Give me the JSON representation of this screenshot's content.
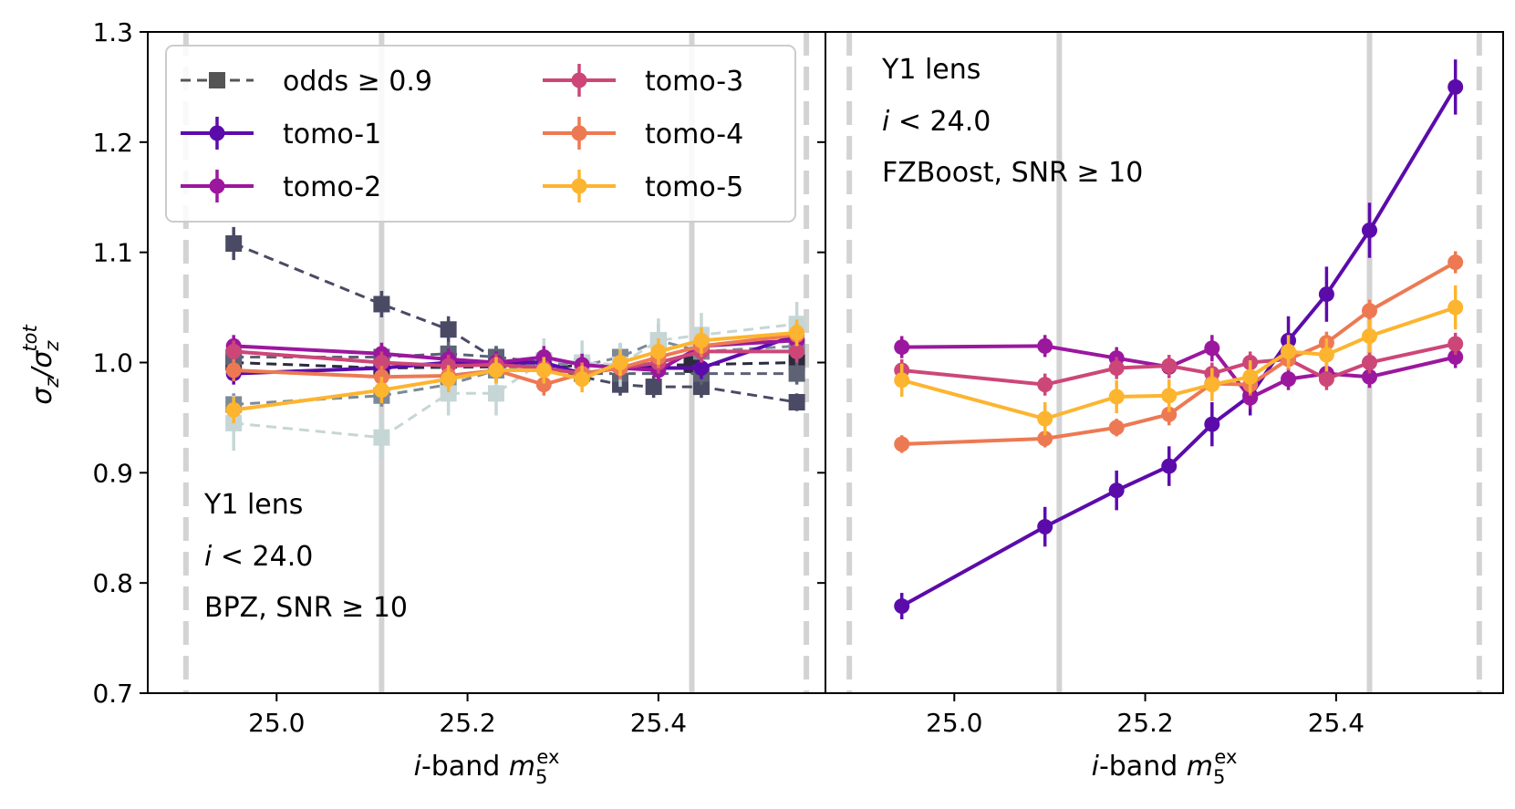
{
  "chart_data": {
    "type": "line",
    "ylabel_parts": {
      "main": "σ",
      "sub": "z",
      "slash": "/σ",
      "sub2": "z",
      "sup2": "tot"
    },
    "ylim": [
      0.7,
      1.3
    ],
    "yticks": [
      "0.7",
      "0.8",
      "0.9",
      "1.0",
      "1.1",
      "1.2",
      "1.3"
    ],
    "xlim": [
      24.865,
      25.575
    ],
    "xticks": [
      "25.0",
      "25.2",
      "25.4"
    ],
    "xlabel_parts": {
      "italic_i": "i",
      "band": "-band ",
      "m": "m",
      "sub": "5",
      "sup": "ex"
    },
    "legend": {
      "placement": "top-left of left panel",
      "entries": [
        {
          "label": "odds ≥ 0.9",
          "color": "#555555",
          "style": "dashed-square"
        },
        {
          "label": "tomo-1",
          "color": "#5c0bab",
          "style": "solid-circle"
        },
        {
          "label": "tomo-2",
          "color": "#9b179e",
          "style": "solid-circle"
        },
        {
          "label": "tomo-3",
          "color": "#cc4778",
          "style": "solid-circle"
        },
        {
          "label": "tomo-4",
          "color": "#ed7953",
          "style": "solid-circle"
        },
        {
          "label": "tomo-5",
          "color": "#fdb42f",
          "style": "solid-circle"
        }
      ]
    },
    "panels": [
      {
        "name": "BPZ",
        "annotation": [
          "Y1 lens",
          "i < 24.0",
          "BPZ, SNR ≥ 10"
        ],
        "annotation_placement": "bottom-left",
        "vlines_solid": [
          25.11,
          25.435
        ],
        "vlines_dashed": [
          24.905,
          25.555
        ],
        "series": [
          {
            "name": "odds ≥ 0.9 tomo-1",
            "style": "dashed-square",
            "color": "#2b2b3d",
            "x": [
              24.955,
              25.11,
              25.435,
              25.545
            ],
            "y": [
              1.0,
              0.995,
              0.998,
              1.0
            ],
            "err": [
              0.008,
              0.008,
              0.008,
              0.008
            ]
          },
          {
            "name": "odds ≥ 0.9 tomo-2",
            "style": "dashed-square",
            "color": "#4a4a64",
            "x": [
              24.955,
              25.11,
              25.18,
              25.23,
              25.36,
              25.395,
              25.445,
              25.545
            ],
            "y": [
              1.108,
              1.053,
              1.03,
              1.003,
              0.98,
              0.978,
              0.978,
              0.964
            ],
            "err": [
              0.015,
              0.012,
              0.012,
              0.012,
              0.01,
              0.01,
              0.01,
              0.008
            ]
          },
          {
            "name": "odds ≥ 0.9 tomo-3",
            "style": "dashed-square",
            "color": "#5d6275",
            "x": [
              24.955,
              25.11,
              25.18,
              25.23,
              25.28,
              25.32,
              25.36,
              25.445,
              25.545
            ],
            "y": [
              1.005,
              1.005,
              1.008,
              1.005,
              1.0,
              0.99,
              0.99,
              0.99,
              0.99
            ],
            "err": [
              0.01,
              0.01,
              0.01,
              0.01,
              0.01,
              0.01,
              0.01,
              0.01,
              0.01
            ]
          },
          {
            "name": "odds ≥ 0.9 tomo-4",
            "style": "dashed-square",
            "color": "#7b8a96",
            "x": [
              24.955,
              25.11,
              25.18,
              25.23,
              25.28,
              25.32,
              25.36,
              25.4,
              25.445,
              25.545
            ],
            "y": [
              0.962,
              0.97,
              0.98,
              0.993,
              1.0,
              0.997,
              1.005,
              1.02,
              1.01,
              1.015
            ],
            "err": [
              0.01,
              0.01,
              0.01,
              0.012,
              0.012,
              0.012,
              0.012,
              0.015,
              0.015,
              0.015
            ]
          },
          {
            "name": "odds ≥ 0.9 tomo-5",
            "style": "dashed-square",
            "color": "#c6d6d6",
            "x": [
              24.955,
              25.11,
              25.18,
              25.23,
              25.28,
              25.32,
              25.36,
              25.4,
              25.445,
              25.545
            ],
            "y": [
              0.945,
              0.932,
              0.972,
              0.972,
              1.002,
              1.0,
              0.998,
              1.02,
              1.025,
              1.035
            ],
            "err": [
              0.025,
              0.02,
              0.02,
              0.02,
              0.02,
              0.02,
              0.02,
              0.02,
              0.02,
              0.02
            ]
          },
          {
            "name": "tomo-1",
            "style": "solid-circle",
            "color": "#5c0bab",
            "x": [
              24.955,
              25.11,
              25.18,
              25.23,
              25.28,
              25.32,
              25.36,
              25.4,
              25.445,
              25.545
            ],
            "y": [
              0.99,
              0.995,
              1.0,
              1.0,
              1.0,
              0.99,
              0.995,
              0.995,
              0.995,
              1.025
            ],
            "err": [
              0.01,
              0.01,
              0.01,
              0.01,
              0.01,
              0.01,
              0.01,
              0.01,
              0.01,
              0.01
            ]
          },
          {
            "name": "tomo-2",
            "style": "solid-circle",
            "color": "#9b179e",
            "x": [
              24.955,
              25.11,
              25.18,
              25.23,
              25.28,
              25.32,
              25.36,
              25.4,
              25.445,
              25.545
            ],
            "y": [
              1.015,
              1.008,
              1.003,
              1.0,
              1.005,
              0.998,
              0.995,
              0.993,
              1.015,
              1.02
            ],
            "err": [
              0.01,
              0.01,
              0.01,
              0.01,
              0.01,
              0.01,
              0.01,
              0.01,
              0.01,
              0.01
            ]
          },
          {
            "name": "tomo-3",
            "style": "solid-circle",
            "color": "#cc4778",
            "x": [
              24.955,
              25.11,
              25.18,
              25.23,
              25.28,
              25.32,
              25.36,
              25.4,
              25.445,
              25.545
            ],
            "y": [
              1.01,
              1.0,
              0.997,
              0.998,
              0.995,
              0.99,
              0.995,
              1.0,
              1.01,
              1.01
            ],
            "err": [
              0.01,
              0.01,
              0.01,
              0.01,
              0.01,
              0.01,
              0.01,
              0.01,
              0.01,
              0.01
            ]
          },
          {
            "name": "tomo-4",
            "style": "solid-circle",
            "color": "#ed7953",
            "x": [
              24.955,
              25.11,
              25.18,
              25.23,
              25.28,
              25.32,
              25.36,
              25.4,
              25.445,
              25.545
            ],
            "y": [
              0.993,
              0.987,
              0.988,
              0.993,
              0.98,
              0.99,
              0.995,
              1.005,
              1.015,
              1.025
            ],
            "err": [
              0.01,
              0.01,
              0.01,
              0.01,
              0.01,
              0.01,
              0.01,
              0.01,
              0.01,
              0.01
            ]
          },
          {
            "name": "tomo-5",
            "style": "solid-circle",
            "color": "#fdb42f",
            "x": [
              24.955,
              25.11,
              25.18,
              25.23,
              25.28,
              25.32,
              25.36,
              25.4,
              25.445,
              25.545
            ],
            "y": [
              0.957,
              0.975,
              0.985,
              0.993,
              0.993,
              0.985,
              1.0,
              1.01,
              1.02,
              1.027
            ],
            "err": [
              0.012,
              0.012,
              0.012,
              0.012,
              0.012,
              0.012,
              0.012,
              0.012,
              0.012,
              0.012
            ]
          }
        ]
      },
      {
        "name": "FZBoost",
        "annotation": [
          "Y1 lens",
          "i < 24.0",
          "FZBoost, SNR ≥ 10"
        ],
        "annotation_placement": "top-left",
        "vlines_solid": [
          25.11,
          25.435
        ],
        "vlines_dashed": [
          24.89,
          25.55
        ],
        "series": [
          {
            "name": "tomo-1",
            "style": "solid-circle",
            "color": "#5c0bab",
            "x": [
              24.945,
              25.095,
              25.17,
              25.225,
              25.27,
              25.31,
              25.35,
              25.39,
              25.435,
              25.525
            ],
            "y": [
              0.779,
              0.851,
              0.884,
              0.906,
              0.944,
              0.97,
              1.02,
              1.062,
              1.12,
              1.25
            ],
            "err": [
              0.012,
              0.018,
              0.018,
              0.018,
              0.02,
              0.018,
              0.022,
              0.025,
              0.025,
              0.025
            ]
          },
          {
            "name": "tomo-2",
            "style": "solid-circle",
            "color": "#9b179e",
            "x": [
              24.945,
              25.095,
              25.17,
              25.225,
              25.27,
              25.31,
              25.35,
              25.39,
              25.435,
              25.525
            ],
            "y": [
              1.014,
              1.015,
              1.004,
              0.996,
              1.013,
              0.968,
              0.985,
              0.99,
              0.987,
              1.005
            ],
            "err": [
              0.01,
              0.01,
              0.01,
              0.01,
              0.012,
              0.01,
              0.01,
              0.01,
              0.01,
              0.01
            ]
          },
          {
            "name": "tomo-3",
            "style": "solid-circle",
            "color": "#cc4778",
            "x": [
              24.945,
              25.095,
              25.17,
              25.225,
              25.27,
              25.31,
              25.35,
              25.39,
              25.435,
              25.525
            ],
            "y": [
              0.993,
              0.98,
              0.995,
              0.997,
              0.99,
              1.0,
              1.003,
              0.985,
              1.0,
              1.017
            ],
            "err": [
              0.01,
              0.01,
              0.01,
              0.01,
              0.01,
              0.01,
              0.01,
              0.01,
              0.01,
              0.01
            ]
          },
          {
            "name": "tomo-4",
            "style": "solid-circle",
            "color": "#ed7953",
            "x": [
              24.945,
              25.095,
              25.17,
              25.225,
              25.27,
              25.31,
              25.35,
              25.39,
              25.435,
              25.525
            ],
            "y": [
              0.926,
              0.931,
              0.941,
              0.953,
              0.981,
              0.98,
              1.003,
              1.018,
              1.047,
              1.091
            ],
            "err": [
              0.008,
              0.008,
              0.008,
              0.01,
              0.01,
              0.01,
              0.01,
              0.01,
              0.01,
              0.01
            ]
          },
          {
            "name": "tomo-5",
            "style": "solid-circle",
            "color": "#fdb42f",
            "x": [
              24.945,
              25.095,
              25.17,
              25.225,
              25.27,
              25.31,
              25.35,
              25.39,
              25.435,
              25.525
            ],
            "y": [
              0.984,
              0.949,
              0.969,
              0.97,
              0.98,
              0.987,
              1.01,
              1.007,
              1.024,
              1.05
            ],
            "err": [
              0.015,
              0.015,
              0.015,
              0.015,
              0.015,
              0.015,
              0.015,
              0.015,
              0.015,
              0.02
            ]
          }
        ]
      }
    ]
  }
}
